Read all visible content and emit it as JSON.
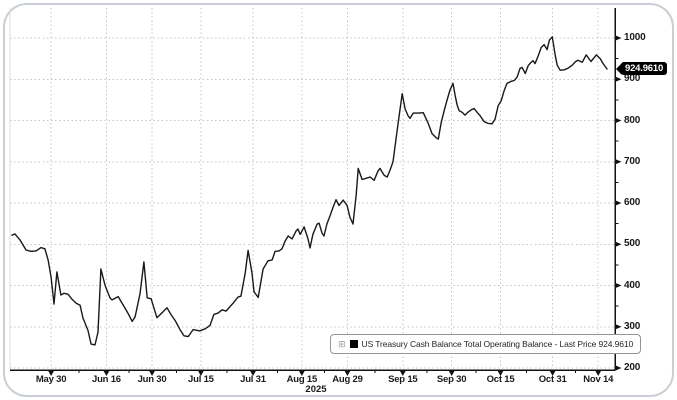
{
  "colors": {
    "line": "#17191b",
    "grid": "#c0c6cb",
    "axis": "#111111",
    "panel_border": "#c9cfd4",
    "tag_background": "#000000",
    "tag_text": "#ffffff",
    "label_text": "#1a1a1a",
    "legend_border": "#8f969c",
    "legend_swatch": "#000000"
  },
  "icons": {
    "legend_expand": "⊞"
  },
  "last_price_tag": {
    "label": "924.9610"
  },
  "chart_data": {
    "type": "line",
    "title": "",
    "grid": "dotted",
    "legend": {
      "position": "bottom-center",
      "text": "US Treasury Cash Balance Total Operating Balance - Last Price 924.9610"
    },
    "y_axis": {
      "side": "right",
      "min": 200,
      "max": 1000,
      "step": 100,
      "minor_step": 50,
      "ticks": [
        200,
        300,
        400,
        500,
        600,
        700,
        800,
        900,
        1000
      ]
    },
    "x_axis": {
      "year": "2025",
      "t_max": 182.7,
      "ticks": [
        {
          "label": "May 30",
          "t": 12
        },
        {
          "label": "Jun 16",
          "t": 29
        },
        {
          "label": "Jun 30",
          "t": 43
        },
        {
          "label": "Jul 15",
          "t": 58
        },
        {
          "label": "Jul 31",
          "t": 74
        },
        {
          "label": "Aug 15",
          "t": 89
        },
        {
          "label": "Aug 29",
          "t": 103
        },
        {
          "label": "Sep 15",
          "t": 120
        },
        {
          "label": "Sep 30",
          "t": 135
        },
        {
          "label": "Oct 15",
          "t": 150
        },
        {
          "label": "Oct 31",
          "t": 166
        },
        {
          "label": "Nov 14",
          "t": 180
        }
      ]
    },
    "series": [
      {
        "name": "US Treasury Cash Balance Total Operating Balance",
        "last_price": 924.961,
        "color": "#17191b",
        "points": [
          [
            0,
            522
          ],
          [
            0.9,
            525
          ],
          [
            2.5,
            510
          ],
          [
            3.4,
            498
          ],
          [
            4.3,
            486
          ],
          [
            5.8,
            483
          ],
          [
            7.4,
            484
          ],
          [
            8.9,
            492
          ],
          [
            10.1,
            489
          ],
          [
            11.1,
            462
          ],
          [
            12,
            420
          ],
          [
            12.9,
            355
          ],
          [
            13.8,
            433
          ],
          [
            15,
            377
          ],
          [
            16,
            381
          ],
          [
            17.2,
            379
          ],
          [
            18.4,
            367
          ],
          [
            19.7,
            357
          ],
          [
            20.9,
            352
          ],
          [
            21.8,
            321
          ],
          [
            23.3,
            292
          ],
          [
            24.3,
            258
          ],
          [
            25.5,
            256
          ],
          [
            26.4,
            287
          ],
          [
            27.3,
            440
          ],
          [
            28.6,
            400
          ],
          [
            30.1,
            370
          ],
          [
            30.7,
            365
          ],
          [
            32.6,
            373
          ],
          [
            34.1,
            353
          ],
          [
            35.6,
            333
          ],
          [
            36.9,
            313
          ],
          [
            37.8,
            324
          ],
          [
            39.3,
            380
          ],
          [
            40.5,
            457
          ],
          [
            41.5,
            370
          ],
          [
            42.7,
            368
          ],
          [
            44.5,
            322
          ],
          [
            46.1,
            334
          ],
          [
            47.6,
            346
          ],
          [
            48.8,
            330
          ],
          [
            50.1,
            315
          ],
          [
            51.6,
            293
          ],
          [
            52.8,
            278
          ],
          [
            54.1,
            276
          ],
          [
            55.6,
            293
          ],
          [
            57.7,
            290
          ],
          [
            59.3,
            295
          ],
          [
            60.8,
            303
          ],
          [
            62,
            330
          ],
          [
            63.3,
            333
          ],
          [
            64.5,
            341
          ],
          [
            65.7,
            338
          ],
          [
            67.9,
            357
          ],
          [
            69.4,
            372
          ],
          [
            70.3,
            374
          ],
          [
            71.6,
            430
          ],
          [
            72.5,
            485
          ],
          [
            73.7,
            430
          ],
          [
            74.3,
            385
          ],
          [
            75.6,
            371
          ],
          [
            77.1,
            440
          ],
          [
            78.6,
            460
          ],
          [
            79.9,
            462
          ],
          [
            80.8,
            483
          ],
          [
            82,
            484
          ],
          [
            82.9,
            489
          ],
          [
            83.9,
            508
          ],
          [
            84.8,
            520
          ],
          [
            86,
            513
          ],
          [
            87.2,
            532
          ],
          [
            87.8,
            537
          ],
          [
            88.5,
            524
          ],
          [
            89.7,
            542
          ],
          [
            90.9,
            513
          ],
          [
            91.5,
            491
          ],
          [
            92.4,
            524
          ],
          [
            93.7,
            549
          ],
          [
            94.3,
            551
          ],
          [
            95.2,
            527
          ],
          [
            95.8,
            520
          ],
          [
            96.7,
            549
          ],
          [
            97.7,
            570
          ],
          [
            98.6,
            590
          ],
          [
            99.5,
            608
          ],
          [
            100.4,
            594
          ],
          [
            101.7,
            607
          ],
          [
            102.9,
            594
          ],
          [
            103.8,
            565
          ],
          [
            104.7,
            549
          ],
          [
            105.7,
            620
          ],
          [
            106.3,
            684
          ],
          [
            107.5,
            657
          ],
          [
            108.7,
            660
          ],
          [
            110,
            663
          ],
          [
            111.2,
            655
          ],
          [
            112.4,
            678
          ],
          [
            113,
            684
          ],
          [
            114.3,
            667
          ],
          [
            115.2,
            663
          ],
          [
            116.1,
            680
          ],
          [
            117,
            700
          ],
          [
            118.6,
            795
          ],
          [
            119.8,
            865
          ],
          [
            120.7,
            828
          ],
          [
            121.6,
            812
          ],
          [
            122.2,
            805
          ],
          [
            123.2,
            818
          ],
          [
            124.7,
            818
          ],
          [
            126.3,
            819
          ],
          [
            127.8,
            793
          ],
          [
            129,
            768
          ],
          [
            130.3,
            758
          ],
          [
            130.9,
            755
          ],
          [
            131.8,
            795
          ],
          [
            132.7,
            824
          ],
          [
            133.6,
            850
          ],
          [
            134.5,
            874
          ],
          [
            135.4,
            890
          ],
          [
            136.1,
            860
          ],
          [
            136.7,
            837
          ],
          [
            137.3,
            824
          ],
          [
            138.2,
            820
          ],
          [
            139.1,
            813
          ],
          [
            140,
            820
          ],
          [
            141,
            826
          ],
          [
            141.9,
            829
          ],
          [
            142.8,
            820
          ],
          [
            143.7,
            812
          ],
          [
            145,
            797
          ],
          [
            146.2,
            793
          ],
          [
            147.4,
            792
          ],
          [
            148.3,
            803
          ],
          [
            149.3,
            836
          ],
          [
            150.2,
            848
          ],
          [
            151.1,
            872
          ],
          [
            152,
            890
          ],
          [
            153.3,
            895
          ],
          [
            154.2,
            897
          ],
          [
            155.1,
            905
          ],
          [
            156,
            926
          ],
          [
            156.6,
            929
          ],
          [
            157.6,
            914
          ],
          [
            158.5,
            933
          ],
          [
            159.4,
            941
          ],
          [
            160,
            945
          ],
          [
            160.6,
            938
          ],
          [
            161.6,
            957
          ],
          [
            162.5,
            977
          ],
          [
            163.4,
            984
          ],
          [
            164.3,
            972
          ],
          [
            165,
            995
          ],
          [
            165.9,
            1003
          ],
          [
            166.8,
            958
          ],
          [
            167.4,
            934
          ],
          [
            168.3,
            922
          ],
          [
            169.6,
            923
          ],
          [
            170.8,
            927
          ],
          [
            172,
            934
          ],
          [
            172.9,
            942
          ],
          [
            173.8,
            946
          ],
          [
            175.1,
            941
          ],
          [
            176.3,
            959
          ],
          [
            177.8,
            943
          ],
          [
            179.4,
            959
          ],
          [
            180.6,
            950
          ],
          [
            181.5,
            938
          ],
          [
            182.7,
            924.961
          ]
        ]
      }
    ]
  }
}
